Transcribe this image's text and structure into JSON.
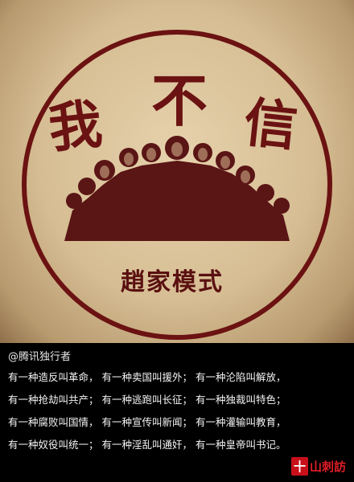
{
  "poster": {
    "title_chars": [
      "我",
      "不",
      "信"
    ],
    "caption": "趙家模式",
    "colors": {
      "ink": "#6b1212",
      "paper": "#d9c29b"
    }
  },
  "post": {
    "author": "@腾讯独行者",
    "lines": [
      "有一种造反叫革命， 有一种卖国叫援外； 有一种沦陷叫解放，",
      "有一种抢劫叫共产； 有一种逃跑叫长征； 有一种独裁叫特色；",
      "有一种腐败叫国情， 有一种宣传叫新闻； 有一种灌输叫教育，",
      "有一种奴役叫统一； 有一种淫乱叫通奸， 有一种皇帝叫书记。"
    ]
  },
  "watermark": {
    "mark": "十",
    "text": "山刺訪"
  }
}
